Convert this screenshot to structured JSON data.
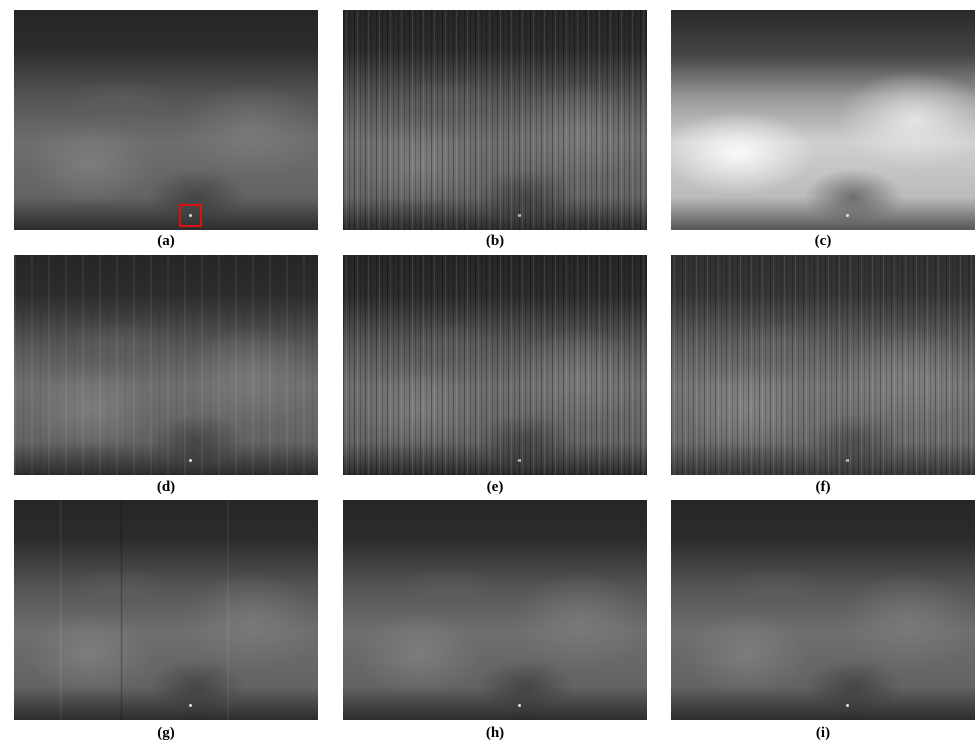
{
  "figure": {
    "panels": [
      {
        "caption": "(a)"
      },
      {
        "caption": "(b)"
      },
      {
        "caption": "(c)"
      },
      {
        "caption": "(d)"
      },
      {
        "caption": "(e)"
      },
      {
        "caption": "(f)"
      },
      {
        "caption": "(g)"
      },
      {
        "caption": "(h)"
      },
      {
        "caption": "(i)"
      }
    ]
  }
}
